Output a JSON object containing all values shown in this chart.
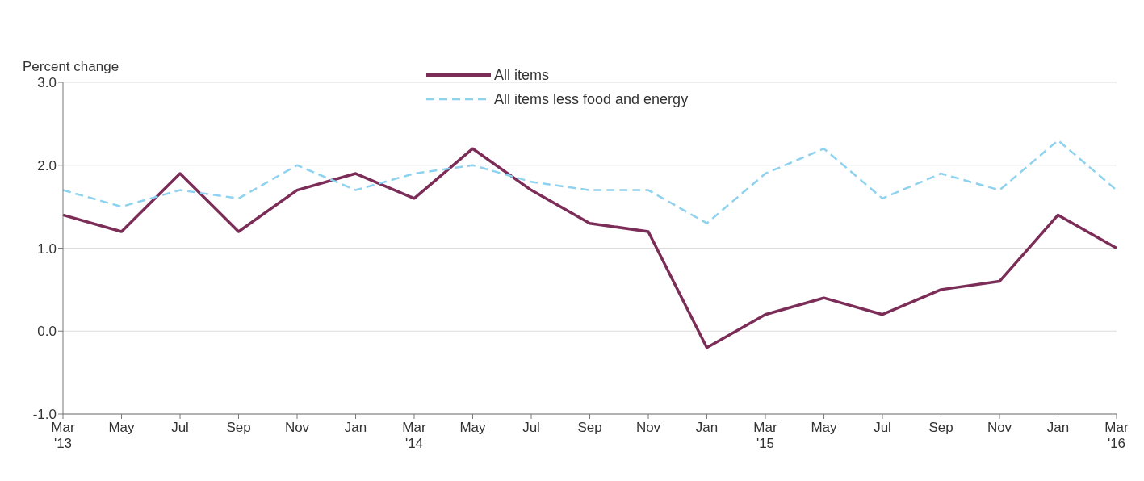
{
  "chart_data": {
    "type": "line",
    "ylabel": "Percent change",
    "categories": [
      "Mar\n'13",
      "May",
      "Jul",
      "Sep",
      "Nov",
      "Jan",
      "Mar\n'14",
      "May",
      "Jul",
      "Sep",
      "Nov",
      "Jan",
      "Mar\n'15",
      "May",
      "Jul",
      "Sep",
      "Nov",
      "Jan",
      "Mar\n'16"
    ],
    "series": [
      {
        "name": "All items",
        "color": "#7b2d57",
        "line_style": "solid",
        "values": [
          1.4,
          1.2,
          1.9,
          1.2,
          1.7,
          1.9,
          1.6,
          2.2,
          1.7,
          1.3,
          1.2,
          -0.2,
          0.2,
          0.4,
          0.2,
          0.5,
          0.6,
          1.4,
          1.0
        ]
      },
      {
        "name": "All items less food and energy",
        "color": "#8ed2f0",
        "line_style": "dashed",
        "values": [
          1.7,
          1.5,
          1.7,
          1.6,
          2.0,
          1.7,
          1.9,
          2.0,
          1.8,
          1.7,
          1.7,
          1.3,
          1.9,
          2.2,
          1.6,
          1.9,
          1.7,
          2.3,
          1.7
        ]
      }
    ],
    "ylim": [
      -1,
      3
    ],
    "yticks": [
      {
        "value": -1,
        "label": "-1.0"
      },
      {
        "value": 0,
        "label": "0.0"
      },
      {
        "value": 1,
        "label": "1.0"
      },
      {
        "value": 2,
        "label": "2.0"
      },
      {
        "value": 3,
        "label": "3.0"
      }
    ],
    "grid": "y",
    "legend": "top",
    "marker": "none"
  }
}
